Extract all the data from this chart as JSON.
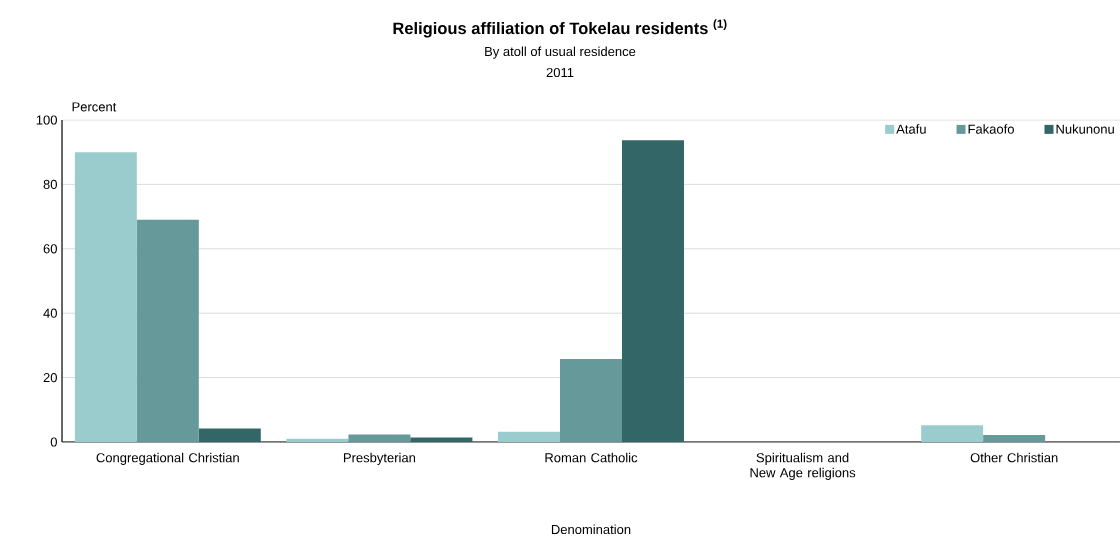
{
  "chart_data": {
    "type": "bar",
    "title": "Religious affiliation of Tokelau residents $^{(1)}$",
    "subtitle": "By atoll of usual residence",
    "annotations": [
      "2011"
    ],
    "xlabel": "Denomination",
    "ylabel": "Percent",
    "categories": [
      "Congregational Christian",
      "Presbyterian",
      "Roman Catholic",
      "Spiritualism and New Age religions",
      "Other Christian"
    ],
    "series": [
      {
        "name": "Atafu",
        "color": "#9bcccd",
        "values": [
          90,
          1,
          3.2,
          0,
          5.2
        ]
      },
      {
        "name": "Fakaofo",
        "color": "#66999a",
        "values": [
          69,
          2.3,
          25.8,
          0,
          2.2
        ]
      },
      {
        "name": "Nukunonu",
        "color": "#336666",
        "values": [
          4.2,
          1.4,
          93.7,
          0,
          0
        ]
      }
    ],
    "ylim": [
      0,
      100
    ],
    "yticks": [
      0,
      20,
      40,
      60,
      80,
      100
    ],
    "grid": "y",
    "legend": "top right"
  }
}
